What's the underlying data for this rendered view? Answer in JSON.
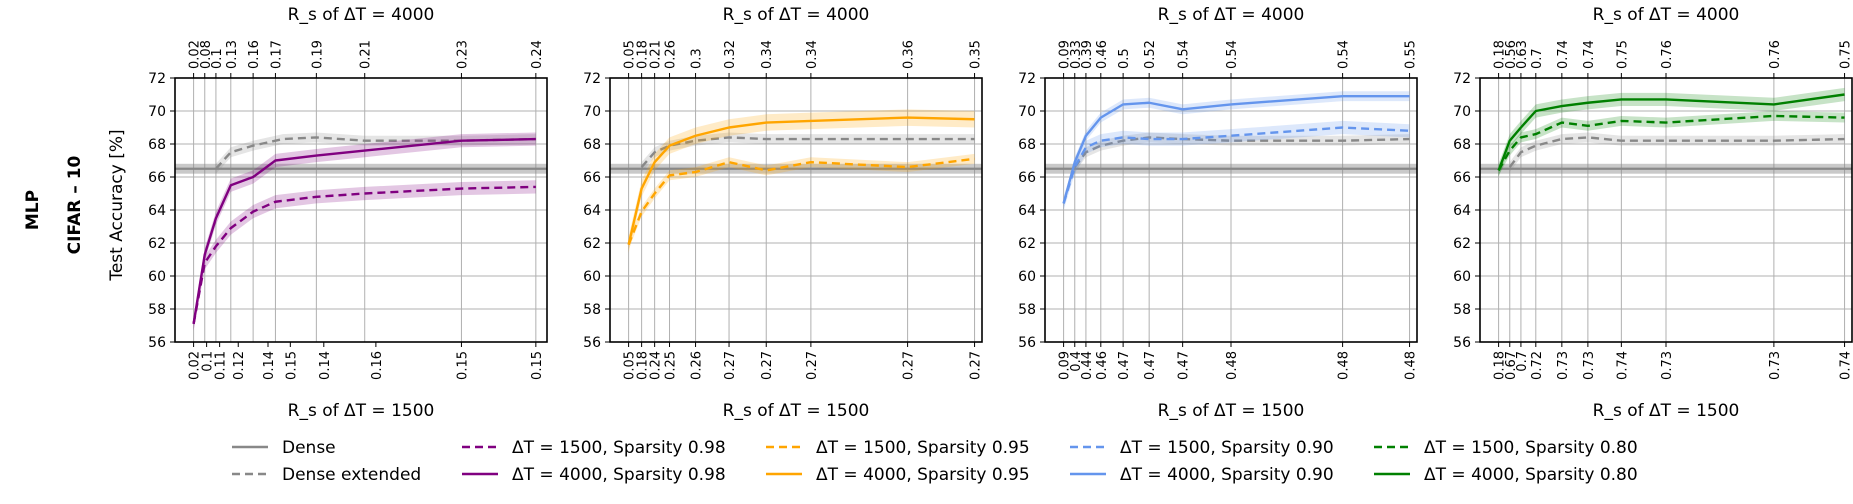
{
  "figure": {
    "row_label_1": "MLP",
    "row_label_2": "CIFAR – 10",
    "ylabel": "Test Accuracy [%]"
  },
  "chart_data": [
    {
      "type": "line",
      "name": "sparsity-0.98",
      "top_title": "R_s of ΔT = 4000",
      "bottom_title": "R_s of ΔT = 1500",
      "ylim": [
        56,
        72
      ],
      "yticks": [
        56,
        58,
        60,
        62,
        64,
        66,
        68,
        70,
        72
      ],
      "x": [
        1,
        2,
        3,
        4,
        5,
        6,
        7,
        8,
        9,
        10
      ],
      "xlim": [
        0.5,
        10.5
      ],
      "top_tick_positions": [
        1,
        1.3,
        1.6,
        2,
        2.6,
        3.2,
        4.3,
        5.6,
        8.2,
        10.2
      ],
      "top_tick_labels": [
        "0.02",
        "0.08",
        "0.1",
        "0.13",
        "0.16",
        "0.17",
        "0.19",
        "0.21",
        "0.23",
        "0.24"
      ],
      "bottom_tick_positions": [
        1,
        1.35,
        1.7,
        2.2,
        3,
        3.6,
        4.5,
        5.9,
        8.2,
        10.2
      ],
      "bottom_tick_labels": [
        "0.02",
        "0.1",
        "0.11",
        "0.12",
        "0.14",
        "0.15",
        "0.14",
        "0.16",
        "0.15",
        "0.15"
      ],
      "dense_band": [
        66.2,
        66.8
      ],
      "dense": 66.5,
      "series": [
        {
          "name": "Dense extended",
          "style": "dashed",
          "color": "#888888",
          "x": [
            1.6,
            2.0,
            2.6,
            3.4,
            4.3,
            5.6,
            8.2,
            10.2
          ],
          "values": [
            66.5,
            67.5,
            67.9,
            68.3,
            68.4,
            68.2,
            68.2,
            68.3
          ],
          "band": 0.3
        },
        {
          "name": "ΔT = 1500, Sparsity 0.98",
          "style": "dashed",
          "color": "#800080",
          "x": [
            1,
            1.3,
            1.6,
            2.0,
            2.6,
            3.2,
            4.3,
            5.6,
            8.2,
            10.2
          ],
          "values": [
            57.1,
            60.8,
            61.8,
            62.9,
            63.9,
            64.5,
            64.8,
            65.0,
            65.3,
            65.4
          ],
          "band": 0.4
        },
        {
          "name": "ΔT = 4000, Sparsity 0.98",
          "style": "solid",
          "color": "#800080",
          "x": [
            1,
            1.3,
            1.6,
            2.0,
            2.6,
            3.2,
            4.3,
            5.6,
            8.2,
            10.2
          ],
          "values": [
            57.1,
            61.3,
            63.5,
            65.5,
            66.0,
            67.0,
            67.3,
            67.6,
            68.2,
            68.3
          ],
          "band": 0.4
        }
      ]
    },
    {
      "type": "line",
      "name": "sparsity-0.95",
      "top_title": "R_s of ΔT = 4000",
      "bottom_title": "R_s of ΔT = 1500",
      "ylim": [
        56,
        72
      ],
      "yticks": [
        56,
        58,
        60,
        62,
        64,
        66,
        68,
        70,
        72
      ],
      "x": [
        1,
        2,
        3,
        4,
        5,
        6,
        7,
        8,
        9,
        10
      ],
      "xlim": [
        0.5,
        10.5
      ],
      "top_tick_positions": [
        1,
        1.35,
        1.7,
        2.1,
        2.8,
        3.7,
        4.7,
        5.9,
        8.5,
        10.3
      ],
      "top_tick_labels": [
        "0.05",
        "0.18",
        "0.21",
        "0.26",
        "0.3",
        "0.32",
        "0.34",
        "0.34",
        "0.36",
        "0.35"
      ],
      "bottom_tick_positions": [
        1,
        1.35,
        1.7,
        2.1,
        2.8,
        3.7,
        4.7,
        5.9,
        8.5,
        10.3
      ],
      "bottom_tick_labels": [
        "0.05",
        "0.18",
        "0.24",
        "0.25",
        "0.26",
        "0.27",
        "0.27",
        "0.27",
        "0.27",
        "0.27"
      ],
      "dense_band": [
        66.2,
        66.8
      ],
      "dense": 66.5,
      "series": [
        {
          "name": "Dense extended",
          "style": "dashed",
          "color": "#888888",
          "x": [
            1.35,
            1.7,
            2.1,
            2.8,
            3.7,
            4.7,
            5.9,
            8.5,
            10.3
          ],
          "values": [
            66.6,
            67.5,
            67.9,
            68.2,
            68.4,
            68.3,
            68.3,
            68.3,
            68.3
          ],
          "band": 0.3
        },
        {
          "name": "ΔT = 1500, Sparsity 0.95",
          "style": "dashed",
          "color": "#FFA500",
          "x": [
            1,
            1.35,
            1.7,
            2.1,
            2.8,
            3.7,
            4.7,
            5.9,
            8.5,
            10.3
          ],
          "values": [
            61.9,
            63.9,
            65.0,
            66.1,
            66.3,
            66.9,
            66.4,
            66.9,
            66.6,
            67.1
          ],
          "band": 0.3
        },
        {
          "name": "ΔT = 4000, Sparsity 0.95",
          "style": "solid",
          "color": "#FFA500",
          "x": [
            1,
            1.35,
            1.7,
            2.1,
            2.8,
            3.7,
            4.7,
            5.9,
            8.5,
            10.3
          ],
          "values": [
            61.9,
            65.3,
            66.9,
            67.9,
            68.5,
            69.0,
            69.3,
            69.4,
            69.6,
            69.5
          ],
          "band": 0.5
        }
      ]
    },
    {
      "type": "line",
      "name": "sparsity-0.90",
      "top_title": "R_s of ΔT = 4000",
      "bottom_title": "R_s of ΔT = 1500",
      "ylim": [
        56,
        72
      ],
      "yticks": [
        56,
        58,
        60,
        62,
        64,
        66,
        68,
        70,
        72
      ],
      "x": [
        1,
        2,
        3,
        4,
        5,
        6,
        7,
        8,
        9,
        10
      ],
      "xlim": [
        0.5,
        10.5
      ],
      "top_tick_positions": [
        1,
        1.3,
        1.6,
        2.0,
        2.6,
        3.3,
        4.2,
        5.5,
        8.5,
        10.3
      ],
      "top_tick_labels": [
        "0.09",
        "0.33",
        "0.39",
        "0.46",
        "0.5",
        "0.52",
        "0.54",
        "0.54",
        "0.54",
        "0.55"
      ],
      "bottom_tick_positions": [
        1,
        1.3,
        1.6,
        2.0,
        2.6,
        3.3,
        4.2,
        5.5,
        8.5,
        10.3
      ],
      "bottom_tick_labels": [
        "0.09",
        "0.4",
        "0.44",
        "0.46",
        "0.47",
        "0.47",
        "0.47",
        "0.48",
        "0.48",
        "0.48"
      ],
      "dense_band": [
        66.2,
        66.8
      ],
      "dense": 66.5,
      "series": [
        {
          "name": "Dense extended",
          "style": "dashed",
          "color": "#888888",
          "x": [
            1.3,
            1.6,
            2.0,
            2.6,
            3.3,
            4.2,
            5.5,
            8.5,
            10.3
          ],
          "values": [
            66.6,
            67.5,
            67.9,
            68.2,
            68.4,
            68.3,
            68.2,
            68.2,
            68.3
          ],
          "band": 0.3
        },
        {
          "name": "ΔT = 1500, Sparsity 0.90",
          "style": "dashed",
          "color": "#6495ED",
          "x": [
            1,
            1.3,
            1.6,
            2.0,
            2.6,
            3.3,
            4.2,
            5.5,
            8.5,
            10.3
          ],
          "values": [
            64.4,
            66.6,
            67.8,
            68.2,
            68.4,
            68.3,
            68.3,
            68.5,
            69.0,
            68.8
          ],
          "band": 0.4
        },
        {
          "name": "ΔT = 4000, Sparsity 0.90",
          "style": "solid",
          "color": "#6495ED",
          "x": [
            1,
            1.3,
            1.6,
            2.0,
            2.6,
            3.3,
            4.2,
            5.5,
            8.5,
            10.3
          ],
          "values": [
            64.4,
            66.9,
            68.5,
            69.6,
            70.4,
            70.5,
            70.1,
            70.4,
            70.9,
            70.9
          ],
          "band": 0.3
        }
      ]
    },
    {
      "type": "line",
      "name": "sparsity-0.80",
      "top_title": "R_s of ΔT = 4000",
      "bottom_title": "R_s of ΔT = 1500",
      "ylim": [
        56,
        72
      ],
      "yticks": [
        56,
        58,
        60,
        62,
        64,
        66,
        68,
        70,
        72
      ],
      "x": [
        1,
        2,
        3,
        4,
        5,
        6,
        7,
        8,
        9,
        10
      ],
      "xlim": [
        0.5,
        10.5
      ],
      "top_tick_positions": [
        1,
        1.3,
        1.6,
        2.0,
        2.7,
        3.4,
        4.3,
        5.5,
        8.4,
        10.3
      ],
      "top_tick_labels": [
        "0.18",
        "0.56",
        "0.63",
        "0.7",
        "0.74",
        "0.74",
        "0.75",
        "0.76",
        "0.76",
        "0.75"
      ],
      "bottom_tick_positions": [
        1,
        1.3,
        1.6,
        2.0,
        2.7,
        3.4,
        4.3,
        5.5,
        8.4,
        10.3
      ],
      "bottom_tick_labels": [
        "0.18",
        "0.67",
        "0.7",
        "0.72",
        "0.73",
        "0.73",
        "0.74",
        "0.73",
        "0.73",
        "0.74"
      ],
      "dense_band": [
        66.2,
        66.8
      ],
      "dense": 66.5,
      "series": [
        {
          "name": "Dense extended",
          "style": "dashed",
          "color": "#888888",
          "x": [
            1.3,
            1.6,
            2.0,
            2.7,
            3.4,
            4.3,
            5.5,
            8.4,
            10.3
          ],
          "values": [
            66.6,
            67.5,
            67.9,
            68.3,
            68.4,
            68.2,
            68.2,
            68.2,
            68.3
          ],
          "band": 0.3
        },
        {
          "name": "ΔT = 1500, Sparsity 0.80",
          "style": "dashed",
          "color": "#008000",
          "x": [
            1,
            1.3,
            1.6,
            2.0,
            2.7,
            3.4,
            4.3,
            5.5,
            8.4,
            10.3
          ],
          "values": [
            66.4,
            67.6,
            68.4,
            68.6,
            69.3,
            69.1,
            69.4,
            69.3,
            69.7,
            69.6
          ],
          "band": 0.3
        },
        {
          "name": "ΔT = 4000, Sparsity 0.80",
          "style": "solid",
          "color": "#008000",
          "x": [
            1,
            1.3,
            1.6,
            2.0,
            2.7,
            3.4,
            4.3,
            5.5,
            8.4,
            10.3
          ],
          "values": [
            66.4,
            68.2,
            69.0,
            70.0,
            70.3,
            70.5,
            70.7,
            70.7,
            70.4,
            71.0
          ],
          "band": 0.4
        }
      ]
    }
  ],
  "legend": [
    {
      "label": "Dense",
      "style": "solid",
      "color": "#888888"
    },
    {
      "label": "Dense extended",
      "style": "dashed",
      "color": "#888888"
    },
    {
      "label": "ΔT = 1500, Sparsity 0.98",
      "style": "dashed",
      "color": "#800080"
    },
    {
      "label": "ΔT = 4000, Sparsity 0.98",
      "style": "solid",
      "color": "#800080"
    },
    {
      "label": "ΔT = 1500, Sparsity 0.95",
      "style": "dashed",
      "color": "#FFA500"
    },
    {
      "label": "ΔT = 4000, Sparsity 0.95",
      "style": "solid",
      "color": "#FFA500"
    },
    {
      "label": "ΔT = 1500, Sparsity 0.90",
      "style": "dashed",
      "color": "#6495ED"
    },
    {
      "label": "ΔT = 4000, Sparsity 0.90",
      "style": "solid",
      "color": "#6495ED"
    },
    {
      "label": "ΔT = 1500, Sparsity 0.80",
      "style": "dashed",
      "color": "#008000"
    },
    {
      "label": "ΔT = 4000, Sparsity 0.80",
      "style": "solid",
      "color": "#008000"
    }
  ]
}
